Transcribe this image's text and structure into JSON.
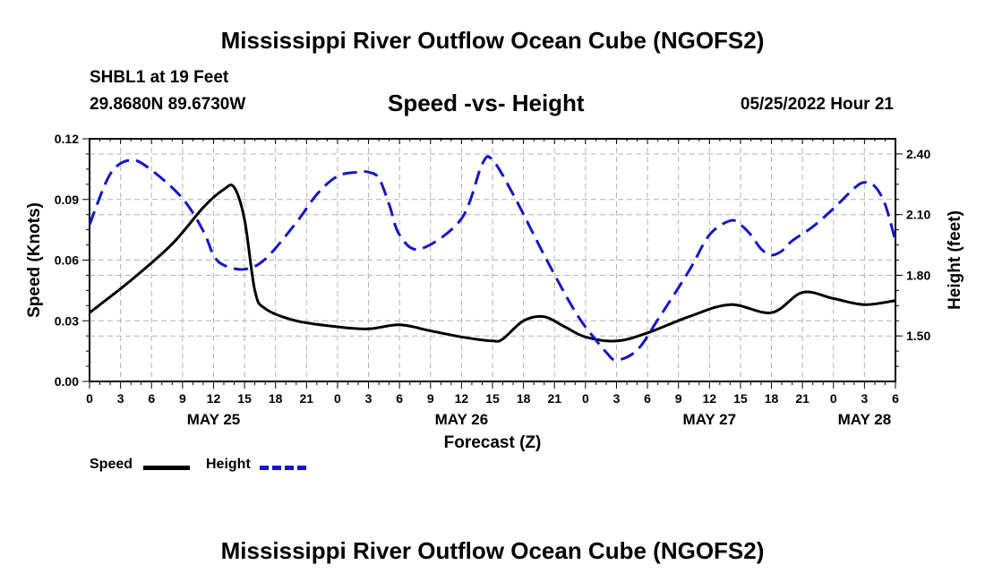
{
  "header": {
    "title": "Mississippi River Outflow Ocean Cube (NGOFS2)",
    "station": "SHBL1 at 19 Feet",
    "coordinates": "29.8680N  89.6730W",
    "subtitle": "Speed -vs- Height",
    "datetime": "05/25/2022 Hour 21"
  },
  "footer": {
    "title": "Mississippi River Outflow Ocean Cube (NGOFS2)"
  },
  "legend": {
    "speed_label": "Speed",
    "height_label": "Height"
  },
  "colors": {
    "speed": "#000000",
    "height": "#1515c8",
    "grid": "#b4b4b4"
  },
  "chart_data": {
    "type": "line",
    "xlabel": "Forecast (Z)",
    "ylabel_left": "Speed (Knots)",
    "ylabel_right": "Height (feet)",
    "x_range_hours": [
      0,
      78
    ],
    "x_tick_labels": [
      "0",
      "3",
      "6",
      "9",
      "12",
      "15",
      "18",
      "21",
      "0",
      "3",
      "6",
      "9",
      "12",
      "15",
      "18",
      "21",
      "0",
      "3",
      "6",
      "9",
      "12",
      "15",
      "18",
      "21",
      "0",
      "3",
      "6"
    ],
    "date_labels": [
      {
        "label": "MAY 25",
        "hour": 12
      },
      {
        "label": "MAY 26",
        "hour": 36
      },
      {
        "label": "MAY 27",
        "hour": 60
      },
      {
        "label": "MAY 28",
        "hour": 75
      }
    ],
    "left_axis": {
      "range": [
        0,
        0.12
      ],
      "ticks": [
        0.0,
        0.03,
        0.06,
        0.09,
        0.12
      ],
      "tick_labels": [
        "0.00",
        "0.03",
        "0.06",
        "0.09",
        "0.12"
      ]
    },
    "right_axis": {
      "range": [
        1.275,
        2.475
      ],
      "ticks": [
        1.5,
        1.8,
        2.1,
        2.4
      ],
      "tick_labels": [
        "1.50",
        "1.80",
        "2.10",
        "2.40"
      ]
    },
    "grid": true,
    "series": [
      {
        "name": "Speed",
        "axis": "left",
        "style": "solid",
        "x": [
          0,
          4,
          8,
          11,
          13,
          14,
          15,
          16,
          17,
          20,
          24,
          27,
          30,
          33,
          36,
          39,
          40,
          42,
          44,
          46,
          48,
          51,
          54,
          58,
          62,
          66,
          69,
          72,
          75,
          78
        ],
        "y": [
          0.034,
          0.05,
          0.068,
          0.086,
          0.095,
          0.096,
          0.08,
          0.045,
          0.036,
          0.03,
          0.027,
          0.026,
          0.028,
          0.025,
          0.022,
          0.02,
          0.021,
          0.03,
          0.032,
          0.027,
          0.022,
          0.02,
          0.024,
          0.032,
          0.038,
          0.034,
          0.044,
          0.041,
          0.038,
          0.04
        ]
      },
      {
        "name": "Height",
        "axis": "right",
        "style": "dashed",
        "x": [
          0,
          2,
          4,
          6,
          9,
          11,
          12,
          13,
          15,
          17,
          20,
          22,
          24,
          26,
          27,
          28,
          29,
          30,
          32,
          36,
          38,
          39,
          41,
          44,
          47,
          49,
          50,
          51,
          53,
          55,
          58,
          60,
          62,
          63,
          64,
          65,
          66,
          67,
          68,
          70,
          72,
          74,
          75,
          76,
          77,
          78
        ],
        "y": [
          2.05,
          2.3,
          2.37,
          2.32,
          2.18,
          2.02,
          1.9,
          1.85,
          1.83,
          1.88,
          2.06,
          2.2,
          2.29,
          2.31,
          2.31,
          2.28,
          2.15,
          2.0,
          1.93,
          2.08,
          2.35,
          2.37,
          2.2,
          1.9,
          1.62,
          1.48,
          1.42,
          1.38,
          1.43,
          1.58,
          1.82,
          2.0,
          2.07,
          2.05,
          2.0,
          1.93,
          1.9,
          1.92,
          1.97,
          2.04,
          2.13,
          2.23,
          2.26,
          2.24,
          2.15,
          1.97
        ]
      }
    ]
  }
}
